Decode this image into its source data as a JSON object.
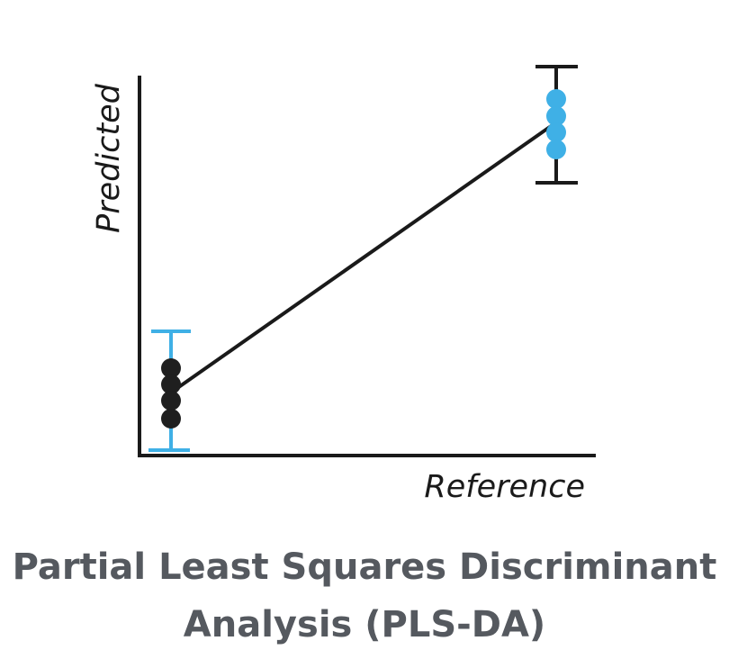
{
  "diagram": {
    "y_axis_label": "Predicted",
    "x_axis_label": "Reference",
    "caption_line_1": "Partial Least Squares Discriminant",
    "caption_line_2": "Analysis (PLS-DA)",
    "colors": {
      "axis": "#1a1a1a",
      "fit_line": "#1a1a1a",
      "group_low_points": "#1f1f1f",
      "group_low_error_bar": "#3fb0e6",
      "group_high_points": "#3fb0e6",
      "group_high_error_bar": "#1a1a1a",
      "caption": "#55595f"
    },
    "group_low": {
      "point_count": 4
    },
    "group_high": {
      "point_count": 4
    }
  }
}
